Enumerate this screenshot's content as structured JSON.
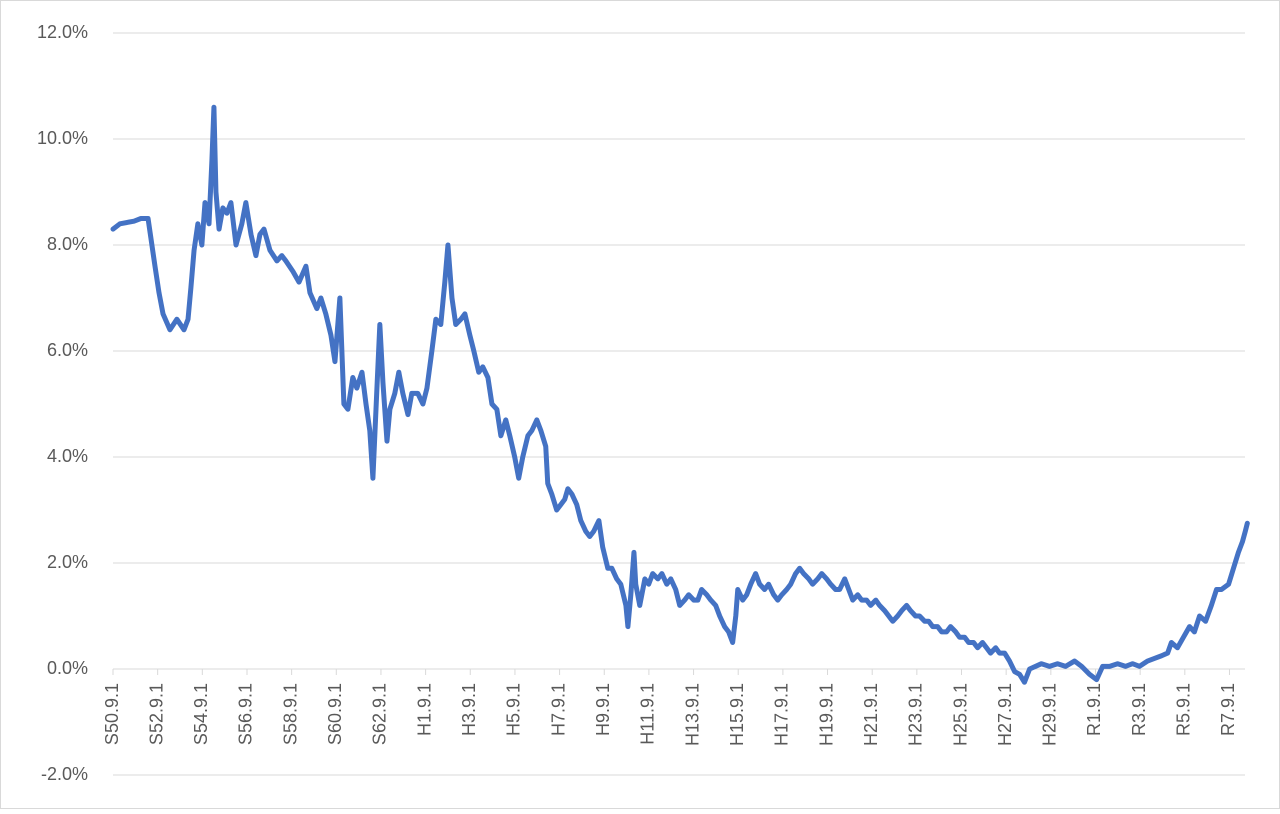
{
  "chart_data": {
    "type": "line",
    "color": "#4472c4",
    "grid": true,
    "ylim": [
      -2,
      12
    ],
    "yticks": [
      {
        "value": -2,
        "label": "-2.0%"
      },
      {
        "value": 0,
        "label": "0.0%"
      },
      {
        "value": 2,
        "label": "2.0%"
      },
      {
        "value": 4,
        "label": "4.0%"
      },
      {
        "value": 6,
        "label": "6.0%"
      },
      {
        "value": 8,
        "label": "8.0%"
      },
      {
        "value": 10,
        "label": "10.0%"
      },
      {
        "value": 12,
        "label": "12.0%"
      }
    ],
    "xlim": [
      1975.67,
      2026.5
    ],
    "xticks": [
      {
        "value": 1975.67,
        "label": "S50.9.1"
      },
      {
        "value": 1977.67,
        "label": "S52.9.1"
      },
      {
        "value": 1979.67,
        "label": "S54.9.1"
      },
      {
        "value": 1981.67,
        "label": "S56.9.1"
      },
      {
        "value": 1983.67,
        "label": "S58.9.1"
      },
      {
        "value": 1985.67,
        "label": "S60.9.1"
      },
      {
        "value": 1987.67,
        "label": "S62.9.1"
      },
      {
        "value": 1989.67,
        "label": "H1.9.1"
      },
      {
        "value": 1991.67,
        "label": "H3.9.1"
      },
      {
        "value": 1993.67,
        "label": "H5.9.1"
      },
      {
        "value": 1995.67,
        "label": "H7.9.1"
      },
      {
        "value": 1997.67,
        "label": "H9.9.1"
      },
      {
        "value": 1999.67,
        "label": "H11.9.1"
      },
      {
        "value": 2001.67,
        "label": "H13.9.1"
      },
      {
        "value": 2003.67,
        "label": "H15.9.1"
      },
      {
        "value": 2005.67,
        "label": "H17.9.1"
      },
      {
        "value": 2007.67,
        "label": "H19.9.1"
      },
      {
        "value": 2009.67,
        "label": "H21.9.1"
      },
      {
        "value": 2011.67,
        "label": "H23.9.1"
      },
      {
        "value": 2013.67,
        "label": "H25.9.1"
      },
      {
        "value": 2015.67,
        "label": "H27.9.1"
      },
      {
        "value": 2017.67,
        "label": "H29.9.1"
      },
      {
        "value": 2019.67,
        "label": "R1.9.1"
      },
      {
        "value": 2021.67,
        "label": "R3.9.1"
      },
      {
        "value": 2023.67,
        "label": "R5.9.1"
      },
      {
        "value": 2025.67,
        "label": "R7.9.1"
      }
    ],
    "x": [
      1975.67,
      1975.98,
      1976.61,
      1976.92,
      1977.24,
      1977.55,
      1977.73,
      1977.91,
      1978.22,
      1978.53,
      1978.85,
      1979.03,
      1979.16,
      1979.3,
      1979.47,
      1979.65,
      1979.79,
      1979.97,
      1980.1,
      1980.19,
      1980.28,
      1980.42,
      1980.59,
      1980.77,
      1980.95,
      1981.18,
      1981.44,
      1981.62,
      1981.85,
      1982.07,
      1982.25,
      1982.43,
      1982.7,
      1983.01,
      1983.23,
      1983.41,
      1983.73,
      1984.0,
      1984.31,
      1984.49,
      1984.8,
      1984.98,
      1985.2,
      1985.43,
      1985.61,
      1985.83,
      1986.01,
      1986.19,
      1986.41,
      1986.59,
      1986.82,
      1987.0,
      1987.17,
      1987.31,
      1987.49,
      1987.62,
      1987.76,
      1987.94,
      1988.07,
      1988.29,
      1988.47,
      1988.65,
      1988.88,
      1989.05,
      1989.32,
      1989.55,
      1989.73,
      1989.95,
      1990.13,
      1990.35,
      1990.53,
      1990.67,
      1990.85,
      1991.02,
      1991.25,
      1991.43,
      1991.65,
      1991.83,
      1992.05,
      1992.23,
      1992.46,
      1992.64,
      1992.86,
      1993.04,
      1993.26,
      1993.44,
      1993.66,
      1993.84,
      1994.02,
      1994.25,
      1994.43,
      1994.65,
      1994.83,
      1995.05,
      1995.14,
      1995.32,
      1995.54,
      1995.72,
      1995.9,
      1996.04,
      1996.22,
      1996.44,
      1996.62,
      1996.84,
      1997.02,
      1997.2,
      1997.43,
      1997.6,
      1997.83,
      1998.01,
      1998.23,
      1998.41,
      1998.64,
      1998.73,
      1998.86,
      1999.0,
      1999.08,
      1999.26,
      1999.49,
      1999.66,
      1999.84,
      2000.07,
      2000.25,
      2000.47,
      2000.65,
      2000.87,
      2001.05,
      2001.27,
      2001.45,
      2001.68,
      2001.86,
      2002.03,
      2002.26,
      2002.44,
      2002.66,
      2002.84,
      2003.06,
      2003.24,
      2003.42,
      2003.56,
      2003.65,
      2003.87,
      2004.05,
      2004.23,
      2004.45,
      2004.63,
      2004.85,
      2005.03,
      2005.26,
      2005.44,
      2005.62,
      2005.84,
      2006.02,
      2006.24,
      2006.42,
      2006.6,
      2006.83,
      2007.0,
      2007.23,
      2007.41,
      2007.63,
      2007.81,
      2008.03,
      2008.21,
      2008.44,
      2008.62,
      2008.8,
      2009.02,
      2009.2,
      2009.42,
      2009.6,
      2009.83,
      2010.0,
      2010.23,
      2010.41,
      2010.59,
      2010.81,
      2010.99,
      2011.21,
      2011.39,
      2011.61,
      2011.79,
      2012.02,
      2012.2,
      2012.38,
      2012.6,
      2012.78,
      2013.0,
      2013.18,
      2013.41,
      2013.58,
      2013.81,
      2013.99,
      2014.21,
      2014.39,
      2014.61,
      2014.79,
      2014.97,
      2015.2,
      2015.37,
      2015.6,
      2015.82,
      2016.05,
      2016.27,
      2016.49,
      2016.72,
      2016.99,
      2017.25,
      2017.61,
      2017.97,
      2018.33,
      2018.73,
      2019.05,
      2019.4,
      2019.72,
      2019.99,
      2020.3,
      2020.66,
      2021.02,
      2021.33,
      2021.64,
      2022.0,
      2022.31,
      2022.63,
      2022.9,
      2023.07,
      2023.34,
      2023.61,
      2023.88,
      2024.1,
      2024.33,
      2024.6,
      2024.86,
      2025.09,
      2025.31,
      2025.63,
      2025.85,
      2026.07,
      2026.25,
      2026.38,
      2026.47
    ],
    "values": [
      8.3,
      8.4,
      8.45,
      8.5,
      8.5,
      7.6,
      7.1,
      6.7,
      6.4,
      6.6,
      6.4,
      6.6,
      7.2,
      7.9,
      8.4,
      8.0,
      8.8,
      8.4,
      9.6,
      10.6,
      9.0,
      8.3,
      8.7,
      8.6,
      8.8,
      8.0,
      8.4,
      8.8,
      8.2,
      7.8,
      8.2,
      8.3,
      7.9,
      7.7,
      7.8,
      7.7,
      7.5,
      7.3,
      7.6,
      7.1,
      6.8,
      7.0,
      6.7,
      6.3,
      5.8,
      7.0,
      5.0,
      4.9,
      5.5,
      5.3,
      5.6,
      5.0,
      4.5,
      3.6,
      5.3,
      6.5,
      5.4,
      4.3,
      4.9,
      5.2,
      5.6,
      5.2,
      4.8,
      5.2,
      5.2,
      5.0,
      5.3,
      6.0,
      6.6,
      6.5,
      7.3,
      8.0,
      7.0,
      6.5,
      6.6,
      6.7,
      6.3,
      6.0,
      5.6,
      5.7,
      5.5,
      5.0,
      4.9,
      4.4,
      4.7,
      4.4,
      4.0,
      3.6,
      4.0,
      4.4,
      4.5,
      4.7,
      4.5,
      4.2,
      3.5,
      3.3,
      3.0,
      3.1,
      3.2,
      3.4,
      3.3,
      3.1,
      2.8,
      2.6,
      2.5,
      2.6,
      2.8,
      2.3,
      1.9,
      1.9,
      1.7,
      1.6,
      1.2,
      0.8,
      1.4,
      2.2,
      1.6,
      1.2,
      1.7,
      1.6,
      1.8,
      1.7,
      1.8,
      1.6,
      1.7,
      1.5,
      1.2,
      1.3,
      1.4,
      1.3,
      1.3,
      1.5,
      1.4,
      1.3,
      1.2,
      1.0,
      0.8,
      0.7,
      0.5,
      1.0,
      1.5,
      1.3,
      1.4,
      1.6,
      1.8,
      1.6,
      1.5,
      1.6,
      1.4,
      1.3,
      1.4,
      1.5,
      1.6,
      1.8,
      1.9,
      1.8,
      1.7,
      1.6,
      1.7,
      1.8,
      1.7,
      1.6,
      1.5,
      1.5,
      1.7,
      1.5,
      1.3,
      1.4,
      1.3,
      1.3,
      1.2,
      1.3,
      1.2,
      1.1,
      1.0,
      0.9,
      1.0,
      1.1,
      1.2,
      1.1,
      1.0,
      1.0,
      0.9,
      0.9,
      0.8,
      0.8,
      0.7,
      0.7,
      0.8,
      0.7,
      0.6,
      0.6,
      0.5,
      0.5,
      0.4,
      0.5,
      0.4,
      0.3,
      0.4,
      0.3,
      0.3,
      0.15,
      -0.05,
      -0.1,
      -0.25,
      0.0,
      0.05,
      0.1,
      0.05,
      0.1,
      0.05,
      0.15,
      0.05,
      -0.1,
      -0.2,
      0.05,
      0.05,
      0.1,
      0.05,
      0.1,
      0.05,
      0.15,
      0.2,
      0.25,
      0.3,
      0.5,
      0.4,
      0.6,
      0.8,
      0.7,
      1.0,
      0.9,
      1.2,
      1.5,
      1.5,
      1.6,
      1.9,
      2.2,
      2.4,
      2.6,
      2.75
    ]
  }
}
